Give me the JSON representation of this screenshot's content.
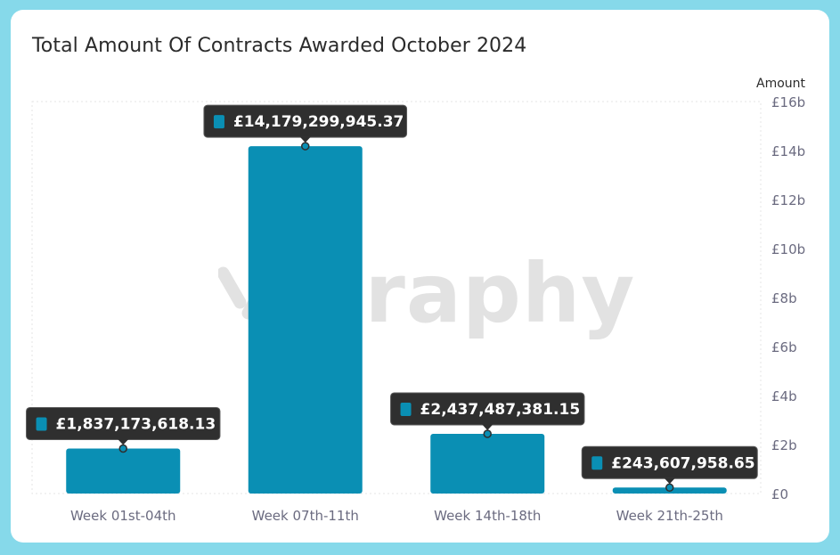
{
  "title": "Total Amount Of Contracts Awarded October 2024",
  "watermark": "Graphy",
  "colors": {
    "bar": "#0a8fb4",
    "tooltip_bg": "#2f2f2f",
    "frame": "#86d9ea"
  },
  "chart_data": {
    "type": "bar",
    "categories": [
      "Week 01st-04th",
      "Week 07th-11th",
      "Week 14th-18th",
      "Week 21th-25th"
    ],
    "values": [
      1837173618.13,
      14179299945.37,
      2437487381.15,
      243607958.65
    ],
    "data_labels": [
      "£1,837,173,618.13",
      "£14,179,299,945.37",
      "£2,437,487,381.15",
      "£243,607,958.65"
    ],
    "title": "Total Amount Of Contracts Awarded October 2024",
    "ylabel": "Amount",
    "ylim": [
      0,
      16000000000
    ],
    "yticks": [
      0,
      2000000000,
      4000000000,
      6000000000,
      8000000000,
      10000000000,
      12000000000,
      14000000000,
      16000000000
    ],
    "ytick_labels": [
      "£0",
      "£2b",
      "£4b",
      "£6b",
      "£8b",
      "£10b",
      "£12b",
      "£14b",
      "£16b"
    ],
    "y_axis_position": "right",
    "grid": false
  }
}
